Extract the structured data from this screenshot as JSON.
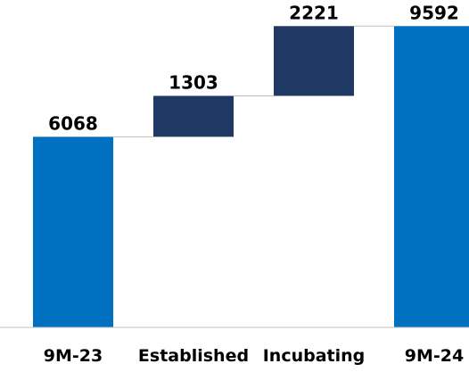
{
  "chart_data": {
    "type": "bar",
    "subtype": "waterfall",
    "categories": [
      "9M-23",
      "Established",
      "Incubating",
      "9M-24"
    ],
    "values": [
      6068,
      1303,
      2221,
      9592
    ],
    "bar_kind": [
      "total",
      "increment",
      "increment",
      "total"
    ],
    "data_labels": [
      "6068",
      "1303",
      "2221",
      "9592"
    ],
    "title": "",
    "xlabel": "",
    "ylabel": "",
    "ylim": [
      0,
      10000
    ],
    "grid": false,
    "legend": "none",
    "colors": {
      "total": "#0070C0",
      "increment": "#1F3864",
      "connector": "#BFBFBF",
      "axis": "#BFBFBF"
    }
  }
}
